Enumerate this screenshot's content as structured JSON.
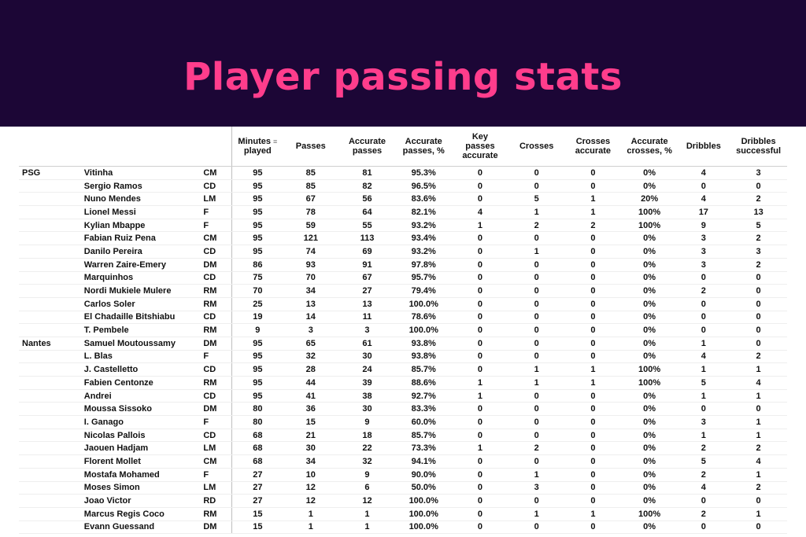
{
  "title": "Player passing stats",
  "columns": [
    "Minutes played",
    "Passes",
    "Accurate passes",
    "Accurate passes, %",
    "Key passes accurate",
    "Crosses",
    "Crosses accurate",
    "Accurate crosses, %",
    "Dribbles",
    "Dribbles successful"
  ],
  "column_headers": {
    "minutes_line1": "Minutes",
    "minutes_line2": "played",
    "sort_icon": "sort-descending-icon",
    "passes": "Passes",
    "acc_passes_line1": "Accurate",
    "acc_passes_line2": "passes",
    "acc_pct_line1": "Accurate",
    "acc_pct_line2": "passes, %",
    "key_line1": "Key",
    "key_line2": "passes",
    "key_line3": "accurate",
    "crosses": "Crosses",
    "cross_acc_line1": "Crosses",
    "cross_acc_line2": "accurate",
    "cross_pct_line1": "Accurate",
    "cross_pct_line2": "crosses, %",
    "dribbles": "Dribbles",
    "drib_succ_line1": "Dribbles",
    "drib_succ_line2": "successful"
  },
  "rows": [
    {
      "team": "PSG",
      "player": "Vitinha",
      "pos": "CM",
      "v": [
        "95",
        "85",
        "81",
        "95.3%",
        "0",
        "0",
        "0",
        "0%",
        "4",
        "3"
      ]
    },
    {
      "team": "",
      "player": "Sergio Ramos",
      "pos": "CD",
      "v": [
        "95",
        "85",
        "82",
        "96.5%",
        "0",
        "0",
        "0",
        "0%",
        "0",
        "0"
      ]
    },
    {
      "team": "",
      "player": "Nuno Mendes",
      "pos": "LM",
      "v": [
        "95",
        "67",
        "56",
        "83.6%",
        "0",
        "5",
        "1",
        "20%",
        "4",
        "2"
      ]
    },
    {
      "team": "",
      "player": "Lionel Messi",
      "pos": "F",
      "v": [
        "95",
        "78",
        "64",
        "82.1%",
        "4",
        "1",
        "1",
        "100%",
        "17",
        "13"
      ]
    },
    {
      "team": "",
      "player": "Kylian Mbappe",
      "pos": "F",
      "v": [
        "95",
        "59",
        "55",
        "93.2%",
        "1",
        "2",
        "2",
        "100%",
        "9",
        "5"
      ]
    },
    {
      "team": "",
      "player": "Fabian Ruiz Pena",
      "pos": "CM",
      "v": [
        "95",
        "121",
        "113",
        "93.4%",
        "0",
        "0",
        "0",
        "0%",
        "3",
        "2"
      ]
    },
    {
      "team": "",
      "player": "Danilo Pereira",
      "pos": "CD",
      "v": [
        "95",
        "74",
        "69",
        "93.2%",
        "0",
        "1",
        "0",
        "0%",
        "3",
        "3"
      ]
    },
    {
      "team": "",
      "player": "Warren Zaire-Emery",
      "pos": "DM",
      "v": [
        "86",
        "93",
        "91",
        "97.8%",
        "0",
        "0",
        "0",
        "0%",
        "3",
        "2"
      ]
    },
    {
      "team": "",
      "player": "Marquinhos",
      "pos": "CD",
      "v": [
        "75",
        "70",
        "67",
        "95.7%",
        "0",
        "0",
        "0",
        "0%",
        "0",
        "0"
      ]
    },
    {
      "team": "",
      "player": "Nordi Mukiele Mulere",
      "pos": "RM",
      "v": [
        "70",
        "34",
        "27",
        "79.4%",
        "0",
        "0",
        "0",
        "0%",
        "2",
        "0"
      ]
    },
    {
      "team": "",
      "player": "Carlos Soler",
      "pos": "RM",
      "v": [
        "25",
        "13",
        "13",
        "100.0%",
        "0",
        "0",
        "0",
        "0%",
        "0",
        "0"
      ]
    },
    {
      "team": "",
      "player": "El Chadaille Bitshiabu",
      "pos": "CD",
      "v": [
        "19",
        "14",
        "11",
        "78.6%",
        "0",
        "0",
        "0",
        "0%",
        "0",
        "0"
      ]
    },
    {
      "team": "",
      "player": "T. Pembele",
      "pos": "RM",
      "v": [
        "9",
        "3",
        "3",
        "100.0%",
        "0",
        "0",
        "0",
        "0%",
        "0",
        "0"
      ]
    },
    {
      "team": "Nantes",
      "player": "Samuel Moutoussamy",
      "pos": "DM",
      "v": [
        "95",
        "65",
        "61",
        "93.8%",
        "0",
        "0",
        "0",
        "0%",
        "1",
        "0"
      ]
    },
    {
      "team": "",
      "player": "L. Blas",
      "pos": "F",
      "v": [
        "95",
        "32",
        "30",
        "93.8%",
        "0",
        "0",
        "0",
        "0%",
        "4",
        "2"
      ]
    },
    {
      "team": "",
      "player": "J. Castelletto",
      "pos": "CD",
      "v": [
        "95",
        "28",
        "24",
        "85.7%",
        "0",
        "1",
        "1",
        "100%",
        "1",
        "1"
      ]
    },
    {
      "team": "",
      "player": "Fabien Centonze",
      "pos": "RM",
      "v": [
        "95",
        "44",
        "39",
        "88.6%",
        "1",
        "1",
        "1",
        "100%",
        "5",
        "4"
      ]
    },
    {
      "team": "",
      "player": "Andrei",
      "pos": "CD",
      "v": [
        "95",
        "41",
        "38",
        "92.7%",
        "1",
        "0",
        "0",
        "0%",
        "1",
        "1"
      ]
    },
    {
      "team": "",
      "player": "Moussa Sissoko",
      "pos": "DM",
      "v": [
        "80",
        "36",
        "30",
        "83.3%",
        "0",
        "0",
        "0",
        "0%",
        "0",
        "0"
      ]
    },
    {
      "team": "",
      "player": "I. Ganago",
      "pos": "F",
      "v": [
        "80",
        "15",
        "9",
        "60.0%",
        "0",
        "0",
        "0",
        "0%",
        "3",
        "1"
      ]
    },
    {
      "team": "",
      "player": "Nicolas Pallois",
      "pos": "CD",
      "v": [
        "68",
        "21",
        "18",
        "85.7%",
        "0",
        "0",
        "0",
        "0%",
        "1",
        "1"
      ]
    },
    {
      "team": "",
      "player": "Jaouen Hadjam",
      "pos": "LM",
      "v": [
        "68",
        "30",
        "22",
        "73.3%",
        "1",
        "2",
        "0",
        "0%",
        "2",
        "2"
      ]
    },
    {
      "team": "",
      "player": "Florent Mollet",
      "pos": "CM",
      "v": [
        "68",
        "34",
        "32",
        "94.1%",
        "0",
        "0",
        "0",
        "0%",
        "5",
        "4"
      ]
    },
    {
      "team": "",
      "player": "Mostafa Mohamed",
      "pos": "F",
      "v": [
        "27",
        "10",
        "9",
        "90.0%",
        "0",
        "1",
        "0",
        "0%",
        "2",
        "1"
      ]
    },
    {
      "team": "",
      "player": "Moses Simon",
      "pos": "LM",
      "v": [
        "27",
        "12",
        "6",
        "50.0%",
        "0",
        "3",
        "0",
        "0%",
        "4",
        "2"
      ]
    },
    {
      "team": "",
      "player": "Joao Victor",
      "pos": "RD",
      "v": [
        "27",
        "12",
        "12",
        "100.0%",
        "0",
        "0",
        "0",
        "0%",
        "0",
        "0"
      ]
    },
    {
      "team": "",
      "player": "Marcus Regis Coco",
      "pos": "RM",
      "v": [
        "15",
        "1",
        "1",
        "100.0%",
        "0",
        "1",
        "1",
        "100%",
        "2",
        "1"
      ]
    },
    {
      "team": "",
      "player": "Evann Guessand",
      "pos": "DM",
      "v": [
        "15",
        "1",
        "1",
        "100.0%",
        "0",
        "0",
        "0",
        "0%",
        "0",
        "0"
      ]
    }
  ],
  "colors": {
    "banner": "#1c0636",
    "title": "#ff3d8c"
  }
}
